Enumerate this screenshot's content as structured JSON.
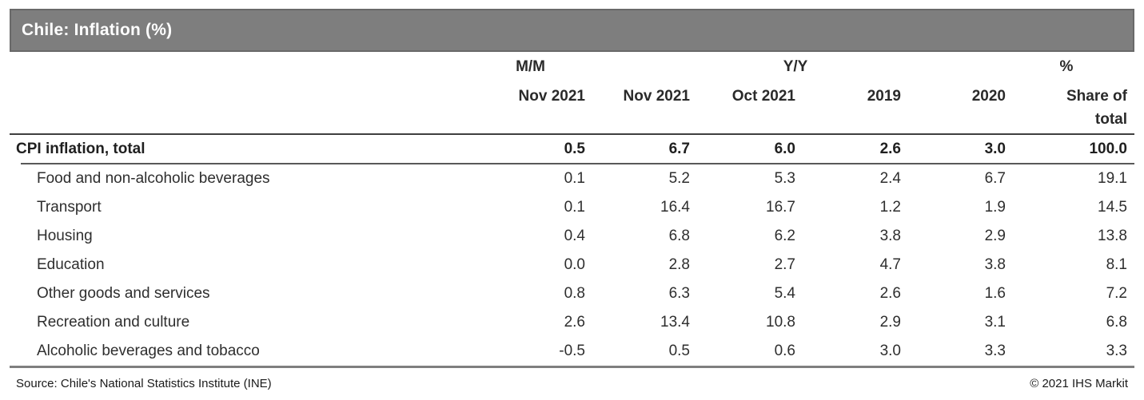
{
  "title": "Chile: Inflation (%)",
  "colors": {
    "titlebar_fill": "#7e7e7e",
    "titlebar_border": "#696969",
    "title_text": "#ffffff",
    "rule_dark": "#3f3f3f",
    "rule_mid": "#595959",
    "rule_bottom": "#7f7f7f",
    "text": "#262626"
  },
  "chart_data": {
    "type": "table",
    "title": "Chile: Inflation (%)",
    "column_groups": [
      {
        "label": "M/M",
        "span_columns": [
          0
        ]
      },
      {
        "label": "Y/Y",
        "span_columns": [
          1,
          2,
          3,
          4
        ]
      },
      {
        "label": "%",
        "span_columns": [
          5
        ]
      }
    ],
    "columns": [
      "Nov 2021",
      "Nov 2021",
      "Oct 2021",
      "2019",
      "2020",
      "Share of total"
    ],
    "rows": [
      {
        "label": "CPI inflation, total",
        "bold": true,
        "values": [
          "0.5",
          "6.7",
          "6.0",
          "2.6",
          "3.0",
          "100.0"
        ]
      },
      {
        "label": "Food and non-alcoholic beverages",
        "bold": false,
        "values": [
          "0.1",
          "5.2",
          "5.3",
          "2.4",
          "6.7",
          "19.1"
        ]
      },
      {
        "label": "Transport",
        "bold": false,
        "values": [
          "0.1",
          "16.4",
          "16.7",
          "1.2",
          "1.9",
          "14.5"
        ]
      },
      {
        "label": "Housing",
        "bold": false,
        "values": [
          "0.4",
          "6.8",
          "6.2",
          "3.8",
          "2.9",
          "13.8"
        ]
      },
      {
        "label": "Education",
        "bold": false,
        "values": [
          "0.0",
          "2.8",
          "2.7",
          "4.7",
          "3.8",
          "8.1"
        ]
      },
      {
        "label": "Other goods and services",
        "bold": false,
        "values": [
          "0.8",
          "6.3",
          "5.4",
          "2.6",
          "1.6",
          "7.2"
        ]
      },
      {
        "label": "Recreation and culture",
        "bold": false,
        "values": [
          "2.6",
          "13.4",
          "10.8",
          "2.9",
          "3.1",
          "6.8"
        ]
      },
      {
        "label": "Alcoholic beverages and tobacco",
        "bold": false,
        "values": [
          "-0.5",
          "0.5",
          "0.6",
          "3.0",
          "3.3",
          "3.3"
        ]
      }
    ],
    "source": "Source: Chile's National Statistics Institute (INE)",
    "copyright": "© 2021 IHS Markit"
  }
}
